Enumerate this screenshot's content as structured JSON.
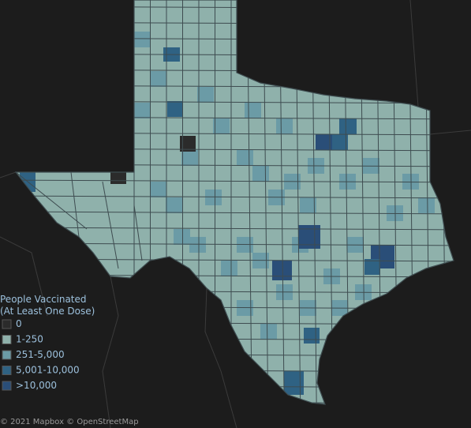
{
  "legend": {
    "title_lines": [
      "People Vaccinated",
      "(At Least One Dose)"
    ],
    "items": [
      {
        "label": "0",
        "color": "#2b2b2b"
      },
      {
        "label": "1-250",
        "color": "#8fb1ab"
      },
      {
        "label": "251-5,000",
        "color": "#6b9ba6"
      },
      {
        "label": "5,001-10,000",
        "color": "#2f6283"
      },
      {
        "label": ">10,000",
        "color": "#2a4e78"
      }
    ]
  },
  "attribution": "© 2021 Mapbox © OpenStreetMap"
}
